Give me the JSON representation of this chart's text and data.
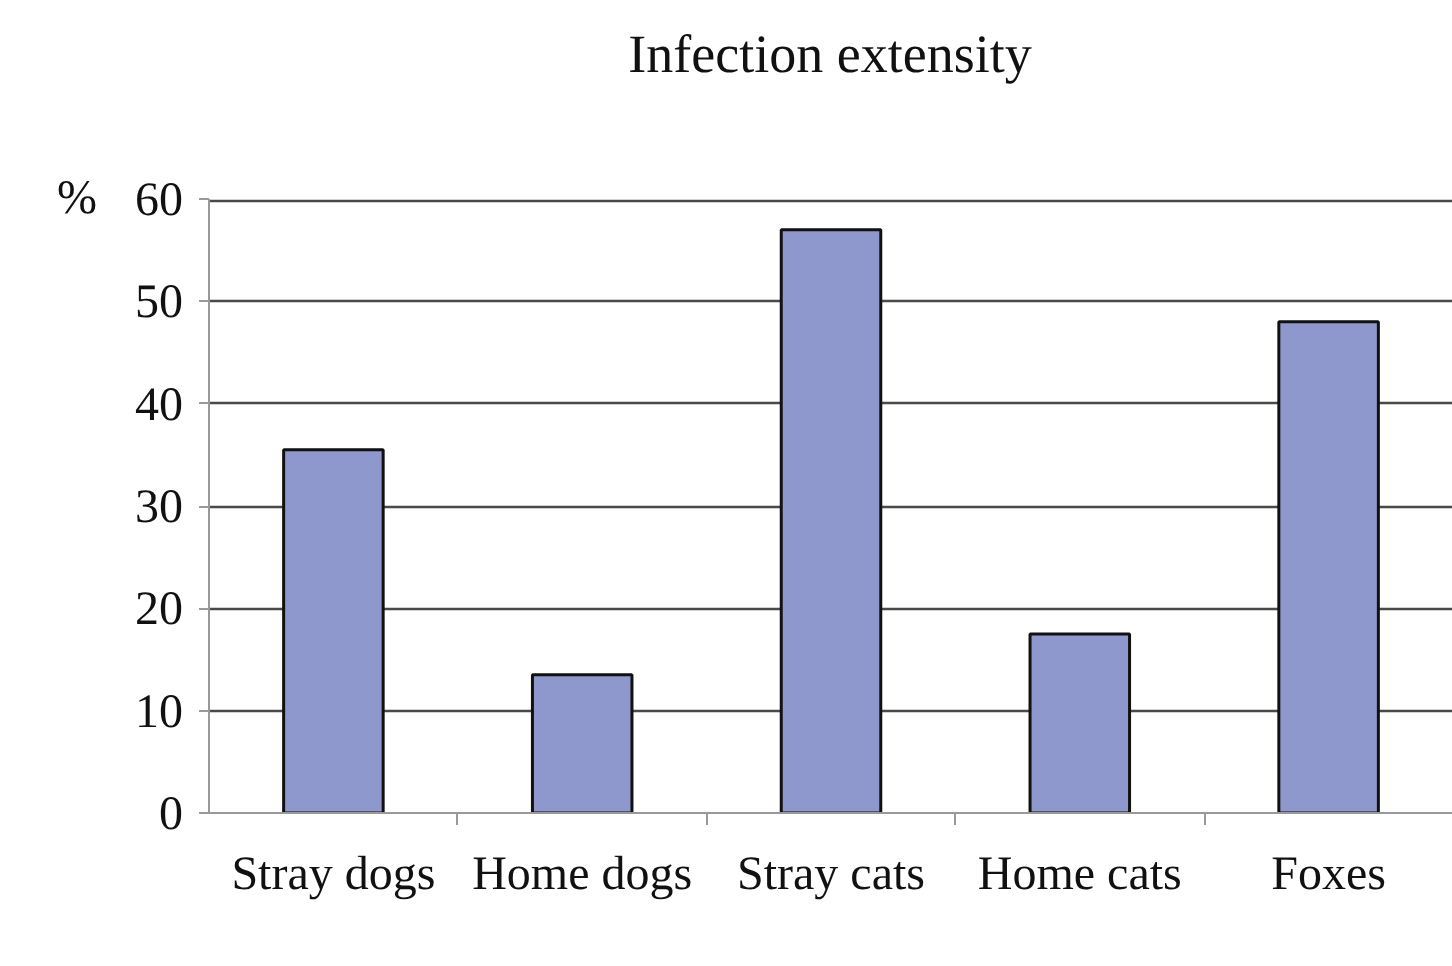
{
  "chart_data": {
    "type": "bar",
    "title": "Infection extensity",
    "ylabel": "%",
    "categories": [
      "Stray dogs",
      "Home dogs",
      "Stray cats",
      "Home cats",
      "Foxes"
    ],
    "values": [
      35.5,
      13.5,
      57,
      17.5,
      48
    ],
    "color": "#8f98cc",
    "ylim": [
      0,
      60
    ],
    "yticks": [
      0,
      10,
      20,
      30,
      40,
      50,
      60
    ],
    "grid": "y"
  }
}
